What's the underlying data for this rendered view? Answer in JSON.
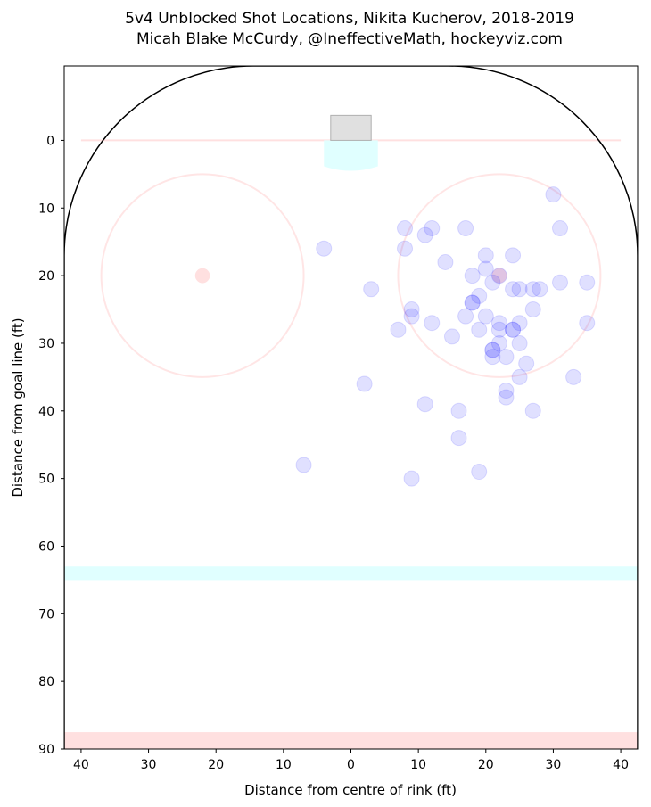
{
  "chart_data": {
    "type": "scatter",
    "title": "5v4 Unblocked Shot Locations, Nikita Kucherov, 2018-2019",
    "subtitle": "Micah Blake McCurdy, @IneffectiveMath, hockeyviz.com",
    "xlabel": "Distance from centre of rink (ft)",
    "ylabel": "Distance from goal line (ft)",
    "xlim": [
      -42.5,
      42.5
    ],
    "ylim": [
      -11,
      90
    ],
    "y_inverted": true,
    "x_ticks": [
      -40,
      -30,
      -20,
      -10,
      0,
      10,
      20,
      30,
      40
    ],
    "x_tick_labels": [
      "40",
      "30",
      "20",
      "10",
      "0",
      "10",
      "20",
      "30",
      "40"
    ],
    "y_ticks": [
      0,
      10,
      20,
      30,
      40,
      50,
      60,
      70,
      80,
      90
    ],
    "y_tick_labels": [
      "0",
      "10",
      "20",
      "30",
      "40",
      "50",
      "60",
      "70",
      "80",
      "90"
    ],
    "grid": false,
    "colors": {
      "shot": "#0000ff",
      "rink_red": "#ff0000",
      "crease": "#e0ffff",
      "blue_line": "#e0ffff",
      "net": "#e0e0e0",
      "boards": "#000000"
    },
    "series": [
      {
        "x": [
          30,
          8,
          12,
          17,
          31,
          -4,
          8,
          11,
          20,
          24,
          14,
          20,
          18,
          21,
          22,
          18,
          24,
          25,
          27,
          28,
          3,
          35,
          31,
          19,
          18,
          9,
          27,
          9,
          17,
          20,
          12,
          22,
          25,
          35,
          7,
          19,
          22,
          24,
          15,
          24,
          22,
          25,
          21,
          21,
          23,
          26,
          21,
          25,
          33,
          2,
          23,
          23,
          11,
          16,
          27,
          16,
          -7,
          19,
          9
        ],
        "y": [
          8,
          13,
          13,
          13,
          13,
          16,
          16,
          14,
          17,
          17,
          18,
          19,
          20,
          21,
          20,
          24,
          22,
          22,
          22,
          22,
          22,
          21,
          21,
          23,
          24,
          25,
          25,
          26,
          26,
          26,
          27,
          27,
          27,
          27,
          28,
          28,
          28,
          28,
          29,
          28,
          30,
          30,
          31,
          31,
          32,
          33,
          32,
          35,
          35,
          36,
          37,
          38,
          39,
          40,
          40,
          44,
          48,
          49,
          50
        ]
      }
    ]
  }
}
